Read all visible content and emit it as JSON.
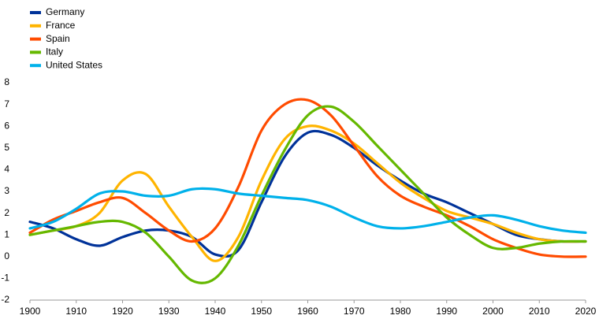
{
  "chart_data": {
    "type": "line",
    "x": [
      1900,
      1905,
      1910,
      1915,
      1920,
      1925,
      1930,
      1935,
      1940,
      1945,
      1950,
      1955,
      1960,
      1965,
      1970,
      1975,
      1980,
      1985,
      1990,
      1995,
      2000,
      2005,
      2010,
      2015,
      2020
    ],
    "series": [
      {
        "name": "Germany",
        "color": "#003299",
        "values": [
          1.6,
          1.3,
          0.8,
          0.5,
          0.9,
          1.2,
          1.2,
          0.9,
          0.1,
          0.3,
          2.5,
          4.6,
          5.7,
          5.6,
          5.0,
          4.2,
          3.5,
          2.9,
          2.5,
          2.0,
          1.5,
          1.0,
          0.8,
          0.7,
          0.7
        ]
      },
      {
        "name": "France",
        "color": "#ffb400",
        "values": [
          1.0,
          1.2,
          1.4,
          2.0,
          3.5,
          3.8,
          2.3,
          0.9,
          -0.2,
          0.9,
          3.5,
          5.4,
          6.0,
          5.8,
          5.2,
          4.3,
          3.4,
          2.7,
          2.1,
          1.8,
          1.5,
          1.1,
          0.8,
          0.7,
          0.7
        ]
      },
      {
        "name": "Spain",
        "color": "#ff4b00",
        "values": [
          1.1,
          1.7,
          2.1,
          2.5,
          2.7,
          2.0,
          1.2,
          0.7,
          1.3,
          3.2,
          5.8,
          7.0,
          7.2,
          6.5,
          5.1,
          3.7,
          2.8,
          2.3,
          1.9,
          1.4,
          0.8,
          0.4,
          0.1,
          0.0,
          0.0
        ]
      },
      {
        "name": "Italy",
        "color": "#65b800",
        "values": [
          1.0,
          1.2,
          1.4,
          1.6,
          1.6,
          1.1,
          0.0,
          -1.1,
          -1.0,
          0.5,
          2.8,
          4.9,
          6.5,
          6.9,
          6.2,
          5.1,
          4.0,
          2.9,
          1.8,
          1.0,
          0.4,
          0.4,
          0.6,
          0.7,
          0.7
        ]
      },
      {
        "name": "United States",
        "color": "#00b1ea",
        "values": [
          1.3,
          1.6,
          2.2,
          2.9,
          3.0,
          2.8,
          2.8,
          3.1,
          3.1,
          2.9,
          2.8,
          2.7,
          2.6,
          2.3,
          1.8,
          1.4,
          1.3,
          1.4,
          1.6,
          1.8,
          1.9,
          1.7,
          1.4,
          1.2,
          1.1
        ]
      }
    ],
    "xlim": [
      1900,
      2020
    ],
    "xticks": [
      1900,
      1910,
      1920,
      1930,
      1940,
      1950,
      1960,
      1970,
      1980,
      1990,
      2000,
      2010,
      2020
    ],
    "ylim": [
      -2,
      8
    ],
    "yticks": [
      -2,
      -1,
      0,
      1,
      2,
      3,
      4,
      5,
      6,
      7,
      8
    ],
    "grid": false,
    "legend": "top-left"
  }
}
